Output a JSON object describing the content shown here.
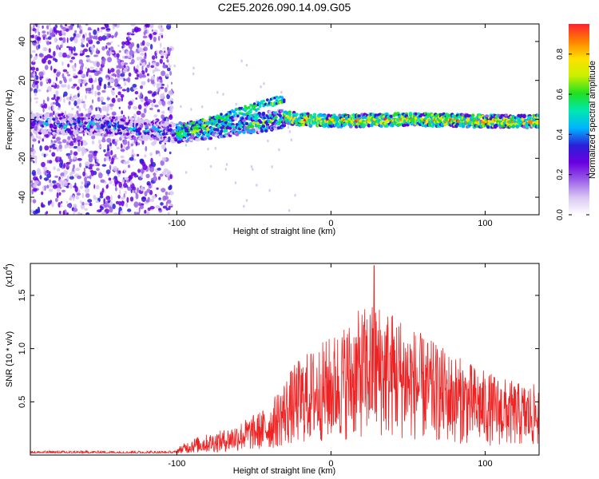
{
  "title": "C2E5.2026.090.14.09.G05",
  "chart_data": [
    {
      "type": "heatmap",
      "xlabel": "Height of straight line (km)",
      "ylabel": "Frequency (Hz)",
      "xlim": [
        -195,
        135
      ],
      "ylim": [
        -49,
        49
      ],
      "xticks": [
        -100,
        0,
        100
      ],
      "yticks": [
        -40,
        -20,
        0,
        20,
        40
      ],
      "colorbar": {
        "label": "Normalized spectral amplitude",
        "range": [
          0,
          0.95
        ],
        "ticks": [
          0.0,
          0.2,
          0.4,
          0.6,
          0.8
        ]
      },
      "ridge": [
        {
          "x": -195,
          "y": -2
        },
        {
          "x": -150,
          "y": -3
        },
        {
          "x": -100,
          "y": -7
        },
        {
          "x": -80,
          "y": -5
        },
        {
          "x": -60,
          "y": -3
        },
        {
          "x": -40,
          "y": -1
        },
        {
          "x": -30,
          "y": 1
        },
        {
          "x": -20,
          "y": 0
        },
        {
          "x": 0,
          "y": -1
        },
        {
          "x": 50,
          "y": 0
        },
        {
          "x": 100,
          "y": -1
        },
        {
          "x": 135,
          "y": -1
        }
      ],
      "colors": [
        "#ffffff",
        "#d9c7f3",
        "#9a5fe8",
        "#6a00e0",
        "#2a1fd8",
        "#00b4ff",
        "#00e8b0",
        "#20e020",
        "#c8f000",
        "#ffe000",
        "#ff8000",
        "#ff2030"
      ]
    },
    {
      "type": "line",
      "xlabel": "Height of straight line (km)",
      "ylabel": "SNR (10 * v/v)",
      "multiplier": "(x10",
      "multiplier_exp": "4",
      "multiplier_close": ")",
      "xlim": [
        -195,
        135
      ],
      "ylim": [
        0,
        1.8
      ],
      "xticks": [
        -100,
        0,
        100
      ],
      "yticks": [
        0.5,
        1.0,
        1.5
      ],
      "ytick_labels": [
        "0.5",
        "1.0",
        "1.5"
      ],
      "color": "#ee2222",
      "envelope": [
        {
          "x": -195,
          "y": 0.05
        },
        {
          "x": -100,
          "y": 0.05
        },
        {
          "x": -90,
          "y": 0.12
        },
        {
          "x": -70,
          "y": 0.18
        },
        {
          "x": -55,
          "y": 0.26
        },
        {
          "x": -40,
          "y": 0.35
        },
        {
          "x": -30,
          "y": 0.55
        },
        {
          "x": -20,
          "y": 0.7
        },
        {
          "x": 0,
          "y": 0.85
        },
        {
          "x": 20,
          "y": 1.05
        },
        {
          "x": 30,
          "y": 1.1
        },
        {
          "x": 45,
          "y": 1.0
        },
        {
          "x": 60,
          "y": 0.85
        },
        {
          "x": 80,
          "y": 0.72
        },
        {
          "x": 100,
          "y": 0.6
        },
        {
          "x": 120,
          "y": 0.52
        },
        {
          "x": 135,
          "y": 0.5
        }
      ],
      "peak": {
        "x": 28,
        "y": 1.78
      }
    }
  ]
}
